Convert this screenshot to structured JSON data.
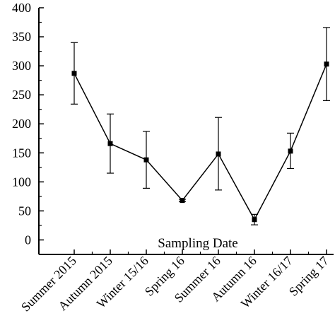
{
  "chart_data": {
    "type": "line",
    "title": "",
    "xlabel": "Sampling Date",
    "ylabel": "",
    "categories": [
      "Summer 2015",
      "Autumn 2015",
      "Winter 15/16",
      "Spring 16",
      "Summer 16",
      "Autumn 16",
      "Winter 16/17",
      "Spring 17"
    ],
    "series": [
      {
        "values": [
          287,
          166,
          138,
          68,
          148,
          35,
          153,
          303
        ],
        "error_low": [
          234,
          115,
          89,
          66,
          86,
          26,
          123,
          240
        ],
        "error_high": [
          340,
          217,
          187,
          70,
          211,
          44,
          184,
          366
        ]
      }
    ],
    "ylim": [
      -25,
      400
    ],
    "yticks": [
      0,
      50,
      100,
      150,
      200,
      250,
      300,
      350,
      400
    ],
    "ytick_labels": [
      "0",
      "50",
      "100",
      "150",
      "200",
      "250",
      "300",
      "350",
      "400"
    ],
    "grid": false,
    "legend": "none",
    "marker": "square",
    "colors": {
      "line": "#000000",
      "marker": "#000000",
      "axis": "#000000"
    }
  }
}
